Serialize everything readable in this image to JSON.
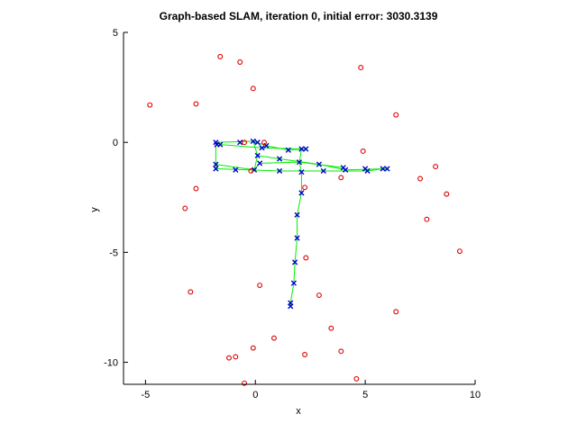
{
  "chart_data": {
    "type": "scatter",
    "title": "Graph-based SLAM, iteration 0, initial error: 3030.3139",
    "xlabel": "x",
    "ylabel": "y",
    "xlim": [
      -6,
      10
    ],
    "ylim": [
      -11,
      5
    ],
    "xticks": [
      -5,
      0,
      5,
      10
    ],
    "yticks": [
      5,
      0,
      -5,
      -10
    ],
    "xtick_labels": [
      "-5",
      "0",
      "5",
      "10"
    ],
    "ytick_labels": [
      "5",
      "0",
      "-5",
      "-10"
    ],
    "grid": false,
    "legend": "none",
    "colors": {
      "landmarks": "#dd0000",
      "poses": "#0000cc",
      "edges": "#00ee00",
      "axes": "#000000",
      "background": "#ffffff"
    },
    "series": [
      {
        "marker": "o",
        "points": [
          [
            -1.6,
            3.9
          ],
          [
            -0.7,
            3.65
          ],
          [
            -0.1,
            2.45
          ],
          [
            4.8,
            3.4
          ],
          [
            -4.8,
            1.7
          ],
          [
            -2.7,
            1.75
          ],
          [
            6.4,
            1.25
          ],
          [
            -0.5,
            0.0
          ],
          [
            0.4,
            0.0
          ],
          [
            4.9,
            -0.4
          ],
          [
            -0.2,
            -1.3
          ],
          [
            3.9,
            -1.6
          ],
          [
            7.5,
            -1.65
          ],
          [
            8.2,
            -1.1
          ],
          [
            -2.7,
            -2.1
          ],
          [
            2.25,
            -2.05
          ],
          [
            8.7,
            -2.35
          ],
          [
            -3.2,
            -3.0
          ],
          [
            7.8,
            -3.5
          ],
          [
            9.3,
            -4.95
          ],
          [
            2.3,
            -5.25
          ],
          [
            0.2,
            -6.5
          ],
          [
            -2.95,
            -6.8
          ],
          [
            2.9,
            -6.95
          ],
          [
            6.4,
            -7.7
          ],
          [
            3.45,
            -8.45
          ],
          [
            0.85,
            -8.9
          ],
          [
            3.9,
            -9.5
          ],
          [
            -0.1,
            -9.35
          ],
          [
            2.25,
            -9.65
          ],
          [
            -0.9,
            -9.75
          ],
          [
            -1.2,
            -9.8
          ],
          [
            4.6,
            -10.75
          ],
          [
            -0.5,
            -10.95
          ]
        ]
      },
      {
        "marker": "x",
        "points": [
          [
            -1.8,
            0.0
          ],
          [
            -1.75,
            -0.1
          ],
          [
            -1.6,
            -0.1
          ],
          [
            -0.7,
            0.0
          ],
          [
            -0.1,
            0.05
          ],
          [
            0.1,
            0.0
          ],
          [
            0.5,
            -0.15
          ],
          [
            0.3,
            -0.25
          ],
          [
            1.5,
            -0.35
          ],
          [
            2.1,
            -0.3
          ],
          [
            2.3,
            -0.3
          ],
          [
            0.1,
            -0.6
          ],
          [
            1.1,
            -0.75
          ],
          [
            2.0,
            -0.9
          ],
          [
            2.9,
            -1.0
          ],
          [
            0.2,
            -0.95
          ],
          [
            -0.9,
            -1.25
          ],
          [
            -0.05,
            -1.25
          ],
          [
            1.1,
            -1.3
          ],
          [
            2.1,
            -1.35
          ],
          [
            3.1,
            -1.3
          ],
          [
            4.0,
            -1.15
          ],
          [
            4.1,
            -1.25
          ],
          [
            5.0,
            -1.2
          ],
          [
            5.1,
            -1.3
          ],
          [
            5.8,
            -1.2
          ],
          [
            6.0,
            -1.2
          ],
          [
            -1.8,
            -1.0
          ],
          [
            -1.8,
            -1.2
          ],
          [
            2.1,
            -2.3
          ],
          [
            1.9,
            -3.3
          ],
          [
            1.9,
            -4.35
          ],
          [
            1.8,
            -5.45
          ],
          [
            1.75,
            -6.4
          ],
          [
            1.6,
            -7.3
          ],
          [
            1.6,
            -7.45
          ]
        ]
      }
    ],
    "edges": [
      [
        [
          -1.8,
          0.0
        ],
        [
          -0.1,
          0.05
        ]
      ],
      [
        [
          -0.1,
          0.05
        ],
        [
          0.5,
          -0.15
        ]
      ],
      [
        [
          0.5,
          -0.15
        ],
        [
          1.5,
          -0.35
        ]
      ],
      [
        [
          1.5,
          -0.35
        ],
        [
          2.3,
          -0.3
        ]
      ],
      [
        [
          -1.6,
          -0.1
        ],
        [
          0.3,
          -0.25
        ]
      ],
      [
        [
          0.3,
          -0.25
        ],
        [
          2.1,
          -0.3
        ]
      ],
      [
        [
          -1.8,
          0.0
        ],
        [
          -1.8,
          -1.2
        ]
      ],
      [
        [
          -1.8,
          -1.0
        ],
        [
          -0.05,
          -1.25
        ]
      ],
      [
        [
          -0.05,
          -1.25
        ],
        [
          0.1,
          -0.6
        ]
      ],
      [
        [
          0.1,
          -0.6
        ],
        [
          1.1,
          -0.75
        ]
      ],
      [
        [
          1.1,
          -0.75
        ],
        [
          2.9,
          -1.0
        ]
      ],
      [
        [
          2.9,
          -1.0
        ],
        [
          4.1,
          -1.25
        ]
      ],
      [
        [
          4.1,
          -1.25
        ],
        [
          6.0,
          -1.2
        ]
      ],
      [
        [
          -1.8,
          -1.2
        ],
        [
          1.1,
          -1.3
        ]
      ],
      [
        [
          1.1,
          -1.3
        ],
        [
          3.1,
          -1.3
        ]
      ],
      [
        [
          3.1,
          -1.3
        ],
        [
          5.1,
          -1.3
        ]
      ],
      [
        [
          5.1,
          -1.3
        ],
        [
          5.8,
          -1.2
        ]
      ],
      [
        [
          -0.05,
          -1.25
        ],
        [
          0.2,
          -0.95
        ]
      ],
      [
        [
          0.2,
          -0.95
        ],
        [
          2.0,
          -0.9
        ]
      ],
      [
        [
          2.0,
          -0.9
        ],
        [
          4.0,
          -1.15
        ]
      ],
      [
        [
          -0.1,
          0.05
        ],
        [
          0.1,
          -0.6
        ]
      ],
      [
        [
          0.1,
          0.0
        ],
        [
          0.3,
          -0.25
        ]
      ],
      [
        [
          2.0,
          -0.9
        ],
        [
          2.1,
          -1.35
        ]
      ],
      [
        [
          2.1,
          -0.3
        ],
        [
          2.0,
          -0.9
        ]
      ],
      [
        [
          2.1,
          -1.35
        ],
        [
          2.1,
          -2.3
        ]
      ],
      [
        [
          2.1,
          -2.3
        ],
        [
          1.9,
          -3.3
        ]
      ],
      [
        [
          1.9,
          -3.3
        ],
        [
          1.9,
          -4.35
        ]
      ],
      [
        [
          1.9,
          -4.35
        ],
        [
          1.8,
          -5.45
        ]
      ],
      [
        [
          1.8,
          -5.45
        ],
        [
          1.75,
          -6.4
        ]
      ],
      [
        [
          1.75,
          -6.4
        ],
        [
          1.6,
          -7.3
        ]
      ],
      [
        [
          1.6,
          -7.3
        ],
        [
          1.6,
          -7.45
        ]
      ]
    ]
  }
}
